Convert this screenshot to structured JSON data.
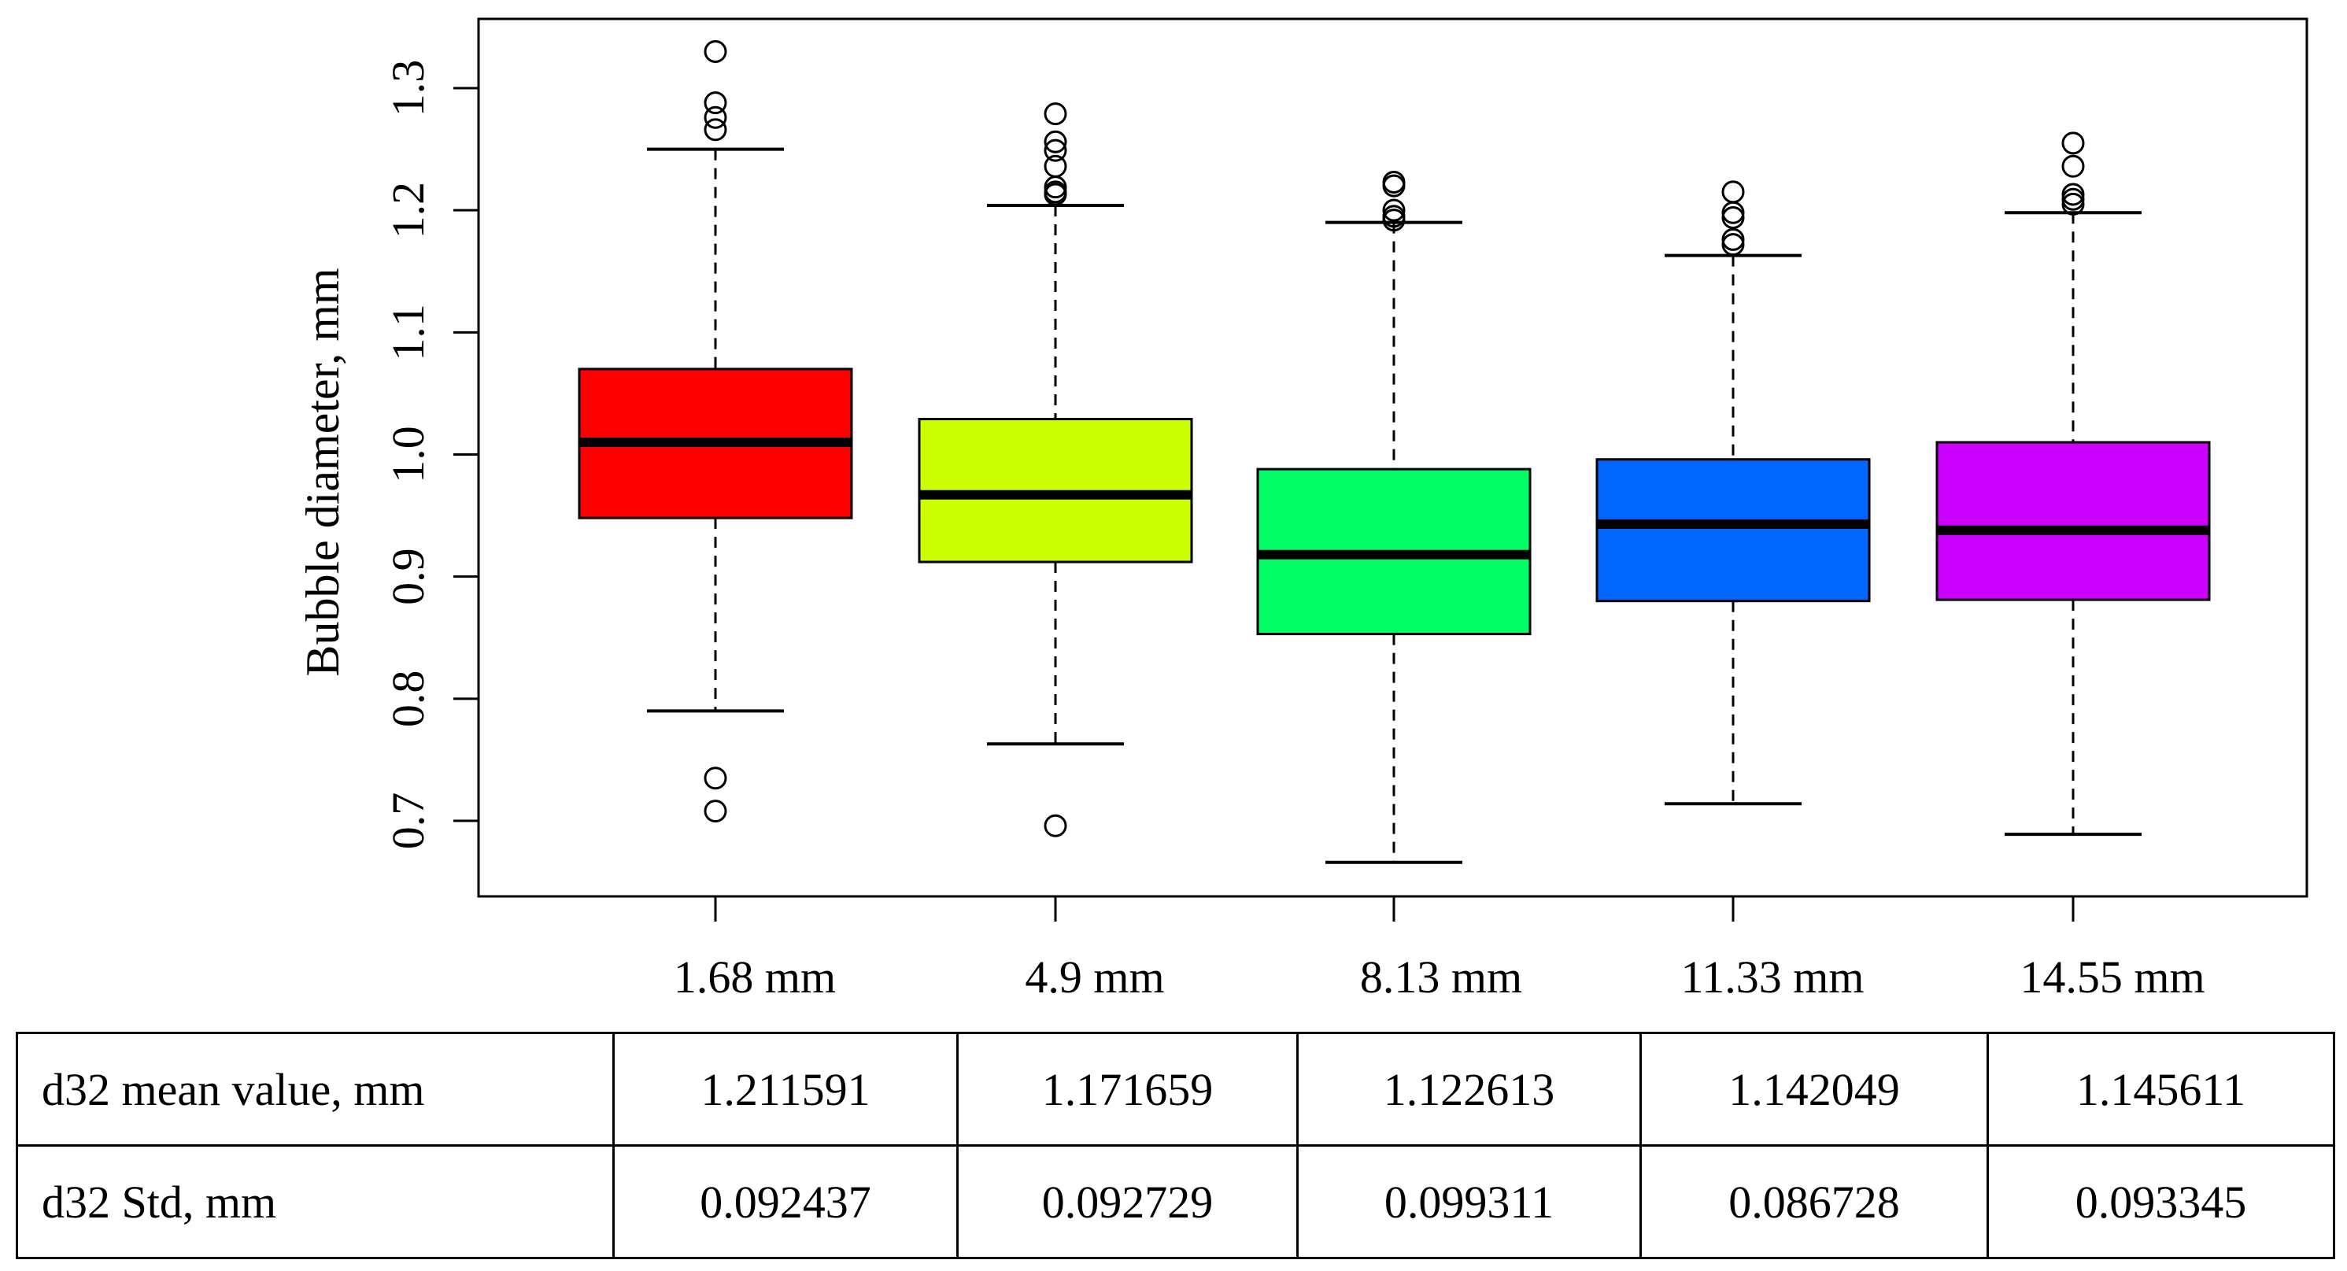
{
  "chart_data": {
    "type": "boxplot",
    "ylabel": "Bubble diameter, mm",
    "xlabel": "",
    "title": "",
    "ylim": [
      0.64,
      1.34
    ],
    "yticks": [
      {
        "value": 0.7,
        "label": "0.7"
      },
      {
        "value": 0.8,
        "label": "0.8"
      },
      {
        "value": 0.9,
        "label": "0.9"
      },
      {
        "value": 1.0,
        "label": "1.0"
      },
      {
        "value": 1.1,
        "label": "1.1"
      },
      {
        "value": 1.2,
        "label": "1.2"
      },
      {
        "value": 1.3,
        "label": "1.3"
      }
    ],
    "categories": [
      "1.68 mm",
      "4.9 mm",
      "8.13 mm",
      "11.33 mm",
      "14.55 mm"
    ],
    "grid": false,
    "legend": "none",
    "boxes": [
      {
        "category": "1.68 mm",
        "color": "#ff0000",
        "whisker_low": 0.79,
        "q1": 0.948,
        "median": 1.01,
        "q3": 1.07,
        "whisker_high": 1.25,
        "outliers": [
          1.33,
          1.288,
          1.276,
          1.266,
          0.735,
          0.708
        ]
      },
      {
        "category": "4.9 mm",
        "color": "#ccff00",
        "whisker_low": 0.763,
        "q1": 0.912,
        "median": 0.967,
        "q3": 1.029,
        "whisker_high": 1.204,
        "outliers": [
          1.279,
          1.256,
          1.249,
          1.236,
          1.219,
          1.215,
          1.213,
          0.696
        ]
      },
      {
        "category": "8.13 mm",
        "color": "#00ff66",
        "whisker_low": 0.666,
        "q1": 0.853,
        "median": 0.918,
        "q3": 0.988,
        "whisker_high": 1.19,
        "outliers": [
          1.223,
          1.22,
          1.2,
          1.195,
          1.192
        ]
      },
      {
        "category": "11.33 mm",
        "color": "#0066ff",
        "whisker_low": 0.714,
        "q1": 0.88,
        "median": 0.943,
        "q3": 0.996,
        "whisker_high": 1.163,
        "outliers": [
          1.215,
          1.198,
          1.194,
          1.176,
          1.172
        ]
      },
      {
        "category": "14.55 mm",
        "color": "#cc00ff",
        "whisker_low": 0.689,
        "q1": 0.881,
        "median": 0.938,
        "q3": 1.01,
        "whisker_high": 1.198,
        "outliers": [
          1.255,
          1.236,
          1.213,
          1.209,
          1.205
        ]
      }
    ]
  },
  "table": {
    "rows": [
      {
        "label": "d32 mean value, mm",
        "values": [
          "1.211591",
          "1.171659",
          "1.122613",
          "1.142049",
          "1.145611"
        ]
      },
      {
        "label": "d32 Std, mm",
        "values": [
          "0.092437",
          "0.092729",
          "0.099311",
          "0.086728",
          "0.093345"
        ]
      }
    ]
  }
}
